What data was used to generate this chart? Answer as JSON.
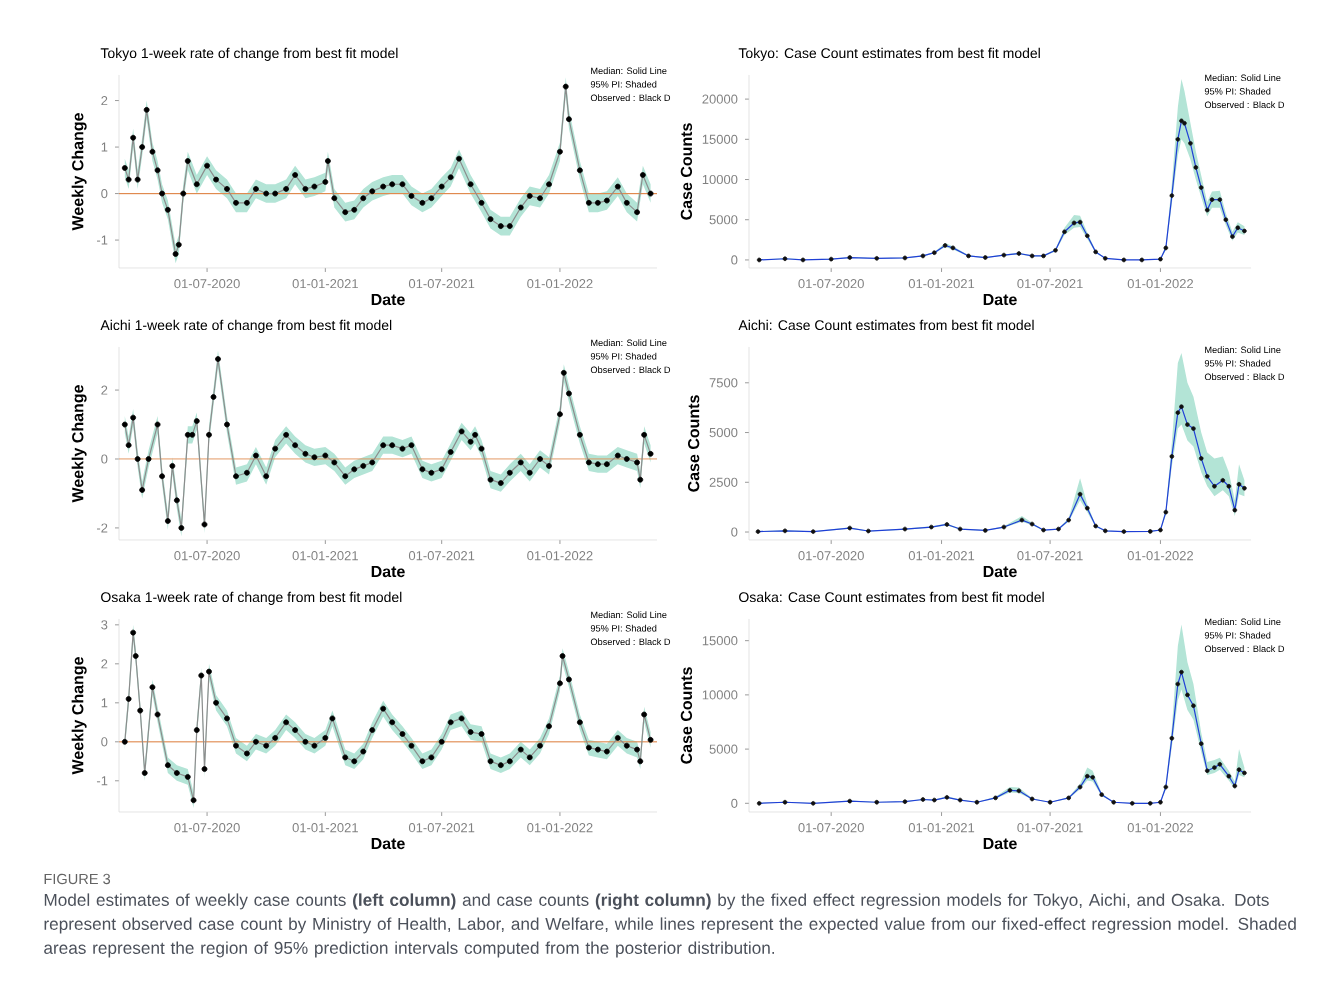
{
  "chart_data": [
    {
      "type": "line",
      "title": "Tokyo 1-week rate of change from best fit model",
      "xlabel": "Date",
      "ylabel": "Weekly Change",
      "x": [
        "2020-02-24",
        "2020-03-01",
        "2020-03-08",
        "2020-03-15",
        "2020-03-22",
        "2020-03-29",
        "2020-04-07",
        "2020-04-15",
        "2020-04-22",
        "2020-05-01",
        "2020-05-13",
        "2020-05-18",
        "2020-05-25",
        "2020-06-01",
        "2020-06-15",
        "2020-07-01",
        "2020-07-15",
        "2020-08-01",
        "2020-08-15",
        "2020-09-01",
        "2020-09-15",
        "2020-10-01",
        "2020-10-15",
        "2020-11-01",
        "2020-11-15",
        "2020-12-01",
        "2020-12-15",
        "2021-01-01",
        "2021-01-05",
        "2021-01-15",
        "2021-02-01",
        "2021-02-15",
        "2021-03-01",
        "2021-03-15",
        "2021-04-01",
        "2021-04-15",
        "2021-05-01",
        "2021-05-15",
        "2021-06-01",
        "2021-06-15",
        "2021-07-01",
        "2021-07-15",
        "2021-07-28",
        "2021-08-15",
        "2021-09-01",
        "2021-09-15",
        "2021-10-01",
        "2021-10-15",
        "2021-11-01",
        "2021-11-15",
        "2021-12-01",
        "2021-12-15",
        "2022-01-01",
        "2022-01-10",
        "2022-01-15",
        "2022-02-01",
        "2022-02-15",
        "2022-03-01",
        "2022-03-15",
        "2022-04-01",
        "2022-04-15",
        "2022-05-01",
        "2022-05-10",
        "2022-05-22"
      ],
      "series": [
        {
          "type": "line",
          "color": "#8c8c8c",
          "marker": "none",
          "values": [
            0.55,
            0.3,
            1.2,
            0.3,
            1.0,
            1.8,
            0.9,
            0.5,
            0.0,
            -0.35,
            -1.3,
            -1.1,
            0.0,
            0.7,
            0.2,
            0.6,
            0.3,
            0.1,
            -0.2,
            -0.2,
            0.1,
            0.0,
            0.0,
            0.1,
            0.4,
            0.1,
            0.15,
            0.25,
            0.7,
            -0.1,
            -0.4,
            -0.35,
            -0.1,
            0.05,
            0.15,
            0.2,
            0.2,
            -0.05,
            -0.2,
            -0.1,
            0.15,
            0.35,
            0.75,
            0.2,
            -0.2,
            -0.55,
            -0.7,
            -0.7,
            -0.3,
            -0.05,
            -0.1,
            0.2,
            0.9,
            2.3,
            1.6,
            0.5,
            -0.2,
            -0.2,
            -0.15,
            0.15,
            -0.2,
            -0.4,
            0.4,
            0.0
          ],
          "lower": [
            0.35,
            0.1,
            1.0,
            0.1,
            0.8,
            1.6,
            0.7,
            0.3,
            -0.2,
            -0.55,
            -1.5,
            -1.3,
            -0.2,
            0.5,
            0.0,
            0.4,
            0.1,
            -0.1,
            -0.4,
            -0.4,
            -0.1,
            -0.2,
            -0.2,
            -0.1,
            0.2,
            -0.1,
            -0.05,
            0.05,
            0.5,
            -0.3,
            -0.6,
            -0.55,
            -0.3,
            -0.15,
            -0.05,
            0.0,
            0.0,
            -0.25,
            -0.4,
            -0.3,
            -0.05,
            0.15,
            0.55,
            0.0,
            -0.4,
            -0.75,
            -0.9,
            -0.9,
            -0.5,
            -0.25,
            -0.3,
            0.0,
            0.7,
            2.1,
            1.4,
            0.3,
            -0.4,
            -0.4,
            -0.35,
            -0.05,
            -0.4,
            -0.6,
            0.2,
            -0.2
          ],
          "upper": [
            0.75,
            0.5,
            1.4,
            0.5,
            1.2,
            2.0,
            1.1,
            0.7,
            0.2,
            -0.15,
            -1.1,
            -0.9,
            0.2,
            0.9,
            0.4,
            0.8,
            0.5,
            0.3,
            0.0,
            0.0,
            0.3,
            0.2,
            0.2,
            0.3,
            0.6,
            0.3,
            0.35,
            0.45,
            0.9,
            0.1,
            -0.2,
            -0.15,
            0.1,
            0.25,
            0.35,
            0.4,
            0.4,
            0.15,
            0.0,
            0.1,
            0.35,
            0.55,
            0.95,
            0.4,
            0.0,
            -0.35,
            -0.5,
            -0.5,
            -0.1,
            0.15,
            0.1,
            0.4,
            1.1,
            2.5,
            1.8,
            0.7,
            0.0,
            0.0,
            0.05,
            0.35,
            0.0,
            -0.2,
            0.6,
            0.2
          ]
        },
        {
          "type": "scatter",
          "color": "#000000",
          "marker": "circle",
          "values": [
            0.55,
            0.3,
            1.2,
            0.3,
            1.0,
            1.8,
            0.9,
            0.5,
            0.0,
            -0.35,
            -1.3,
            -1.1,
            0.0,
            0.7,
            0.2,
            0.6,
            0.3,
            0.1,
            -0.2,
            -0.2,
            0.1,
            0.0,
            0.0,
            0.1,
            0.4,
            0.1,
            0.15,
            0.25,
            0.7,
            -0.1,
            -0.4,
            -0.35,
            -0.1,
            0.05,
            0.15,
            0.2,
            0.2,
            -0.05,
            -0.2,
            -0.1,
            0.15,
            0.35,
            0.75,
            0.2,
            -0.2,
            -0.55,
            -0.7,
            -0.7,
            -0.3,
            -0.05,
            -0.1,
            0.2,
            0.9,
            2.3,
            1.6,
            0.5,
            -0.2,
            -0.2,
            -0.15,
            0.15,
            -0.2,
            -0.4,
            0.4,
            0.0
          ]
        }
      ],
      "xticks": [
        {
          "value": "2020-07-01",
          "label": "01-07-2020"
        },
        {
          "value": "2021-01-01",
          "label": "01-01-2021"
        },
        {
          "value": "2021-07-01",
          "label": "01-07-2021"
        },
        {
          "value": "2022-01-01",
          "label": "01-01-2022"
        }
      ],
      "xlim": [
        "2020-02-15",
        "2022-06-01"
      ],
      "ylim": [
        -1.6,
        2.55
      ],
      "yticks": [
        -1,
        0,
        1,
        2
      ],
      "ref_lines": [
        {
          "axis": "y",
          "value": 0,
          "color": "#e08a4f"
        }
      ],
      "annotations": [
        "Median: Solid Line",
        "95% PI: Shaded",
        "Observed : Black D"
      ]
    },
    {
      "type": "line",
      "title": "Tokyo: Case Count estimates from best fit model",
      "xlabel": "Date",
      "ylabel": "Case Counts",
      "x": [
        "2020-03-03",
        "2020-04-15",
        "2020-05-15",
        "2020-07-01",
        "2020-08-01",
        "2020-09-15",
        "2020-11-01",
        "2020-12-01",
        "2020-12-20",
        "2021-01-07",
        "2021-01-20",
        "2021-02-15",
        "2021-03-15",
        "2021-04-15",
        "2021-05-10",
        "2021-06-01",
        "2021-06-20",
        "2021-07-10",
        "2021-07-25",
        "2021-08-10",
        "2021-08-20",
        "2021-09-01",
        "2021-09-15",
        "2021-10-01",
        "2021-11-01",
        "2021-12-01",
        "2022-01-01",
        "2022-01-10",
        "2022-01-20",
        "2022-01-30",
        "2022-02-05",
        "2022-02-10",
        "2022-02-20",
        "2022-03-01",
        "2022-03-10",
        "2022-03-20",
        "2022-03-28",
        "2022-04-10",
        "2022-04-20",
        "2022-05-01",
        "2022-05-10",
        "2022-05-21"
      ],
      "series": [
        {
          "type": "line",
          "color": "#1f3fd6",
          "marker": "none",
          "values": [
            0,
            150,
            0,
            100,
            300,
            200,
            250,
            500,
            900,
            1800,
            1500,
            500,
            300,
            600,
            800,
            500,
            500,
            1200,
            3500,
            4600,
            4700,
            3000,
            1000,
            200,
            0,
            0,
            100,
            1500,
            8000,
            15000,
            17300,
            17000,
            14500,
            11500,
            9000,
            6200,
            7500,
            7500,
            5000,
            2900,
            4000,
            3600
          ],
          "lower": [
            0,
            100,
            20,
            60,
            250,
            150,
            200,
            430,
            800,
            1600,
            1300,
            430,
            250,
            520,
            700,
            430,
            430,
            1050,
            3100,
            4000,
            4100,
            2600,
            850,
            150,
            10,
            0,
            60,
            1200,
            7000,
            13000,
            15000,
            14500,
            12500,
            10000,
            7800,
            5400,
            6500,
            6500,
            4300,
            2400,
            3400,
            3100
          ],
          "upper": [
            50,
            200,
            80,
            150,
            350,
            250,
            300,
            570,
            1000,
            2100,
            1700,
            570,
            350,
            680,
            900,
            570,
            570,
            1350,
            4000,
            5600,
            5500,
            3400,
            1150,
            250,
            50,
            40,
            150,
            1800,
            9500,
            19000,
            22500,
            21000,
            17000,
            13500,
            10500,
            7200,
            8500,
            8600,
            5800,
            3500,
            4700,
            4200
          ]
        },
        {
          "type": "scatter",
          "color": "#101010",
          "marker": "circle",
          "values": [
            0,
            150,
            0,
            100,
            300,
            200,
            250,
            500,
            900,
            1800,
            1500,
            500,
            300,
            600,
            800,
            500,
            500,
            1200,
            3500,
            4600,
            4700,
            3000,
            1000,
            200,
            0,
            0,
            100,
            1500,
            8000,
            15000,
            17300,
            17000,
            14500,
            11500,
            9000,
            6200,
            7500,
            7500,
            5000,
            2900,
            4000,
            3600
          ]
        }
      ],
      "xticks": [
        {
          "value": "2020-07-01",
          "label": "01-07-2020"
        },
        {
          "value": "2021-01-01",
          "label": "01-01-2021"
        },
        {
          "value": "2021-07-01",
          "label": "01-07-2021"
        },
        {
          "value": "2022-01-01",
          "label": "01-01-2022"
        }
      ],
      "xlim": [
        "2020-02-15",
        "2022-06-01"
      ],
      "ylim": [
        -1000,
        23000
      ],
      "yticks": [
        0,
        5000,
        10000,
        15000,
        20000
      ],
      "annotations": [
        "Median: Solid Line",
        "95% PI: Shaded",
        "Observed : Black D"
      ]
    },
    {
      "type": "line",
      "title": "Aichi 1-week rate of change from best fit model",
      "xlabel": "Date",
      "ylabel": "Weekly Change",
      "x": [
        "2020-02-24",
        "2020-03-01",
        "2020-03-08",
        "2020-03-15",
        "2020-03-22",
        "2020-04-01",
        "2020-04-15",
        "2020-04-22",
        "2020-05-01",
        "2020-05-08",
        "2020-05-15",
        "2020-05-22",
        "2020-06-01",
        "2020-06-08",
        "2020-06-15",
        "2020-06-27",
        "2020-07-04",
        "2020-07-11",
        "2020-07-18",
        "2020-08-01",
        "2020-08-15",
        "2020-09-01",
        "2020-09-15",
        "2020-10-01",
        "2020-10-15",
        "2020-11-01",
        "2020-11-15",
        "2020-12-01",
        "2020-12-15",
        "2021-01-01",
        "2021-01-15",
        "2021-02-01",
        "2021-02-15",
        "2021-03-01",
        "2021-03-15",
        "2021-04-01",
        "2021-04-15",
        "2021-05-01",
        "2021-05-15",
        "2021-06-01",
        "2021-06-15",
        "2021-07-01",
        "2021-07-15",
        "2021-08-01",
        "2021-08-15",
        "2021-08-22",
        "2021-09-01",
        "2021-09-15",
        "2021-10-01",
        "2021-10-15",
        "2021-11-01",
        "2021-11-15",
        "2021-12-01",
        "2021-12-15",
        "2022-01-01",
        "2022-01-07",
        "2022-01-15",
        "2022-02-01",
        "2022-02-15",
        "2022-03-01",
        "2022-03-15",
        "2022-04-01",
        "2022-04-15",
        "2022-05-01",
        "2022-05-06",
        "2022-05-12",
        "2022-05-22"
      ],
      "series": [
        {
          "type": "line",
          "color": "#8c8c8c",
          "marker": "none",
          "values": [
            1.0,
            0.4,
            1.2,
            0.0,
            -0.9,
            0.0,
            1.0,
            -0.5,
            -1.8,
            -0.2,
            -1.2,
            -2.0,
            0.7,
            0.7,
            1.1,
            -1.9,
            0.7,
            1.8,
            2.9,
            1.0,
            -0.5,
            -0.4,
            0.1,
            -0.5,
            0.3,
            0.7,
            0.4,
            0.15,
            0.05,
            0.1,
            -0.1,
            -0.5,
            -0.3,
            -0.2,
            -0.1,
            0.4,
            0.4,
            0.3,
            0.4,
            -0.3,
            -0.4,
            -0.3,
            0.2,
            0.8,
            0.5,
            0.7,
            0.3,
            -0.6,
            -0.7,
            -0.4,
            -0.1,
            -0.4,
            0.0,
            -0.2,
            1.3,
            2.5,
            1.9,
            0.7,
            -0.1,
            -0.15,
            -0.15,
            0.1,
            0.0,
            -0.1,
            -0.6,
            0.7,
            0.15
          ],
          "lower": [
            0.75,
            0.15,
            0.95,
            -0.25,
            -1.15,
            -0.25,
            0.75,
            -0.75,
            -2.05,
            -0.45,
            -1.45,
            -2.25,
            0.45,
            0.45,
            0.85,
            -2.15,
            0.45,
            1.55,
            2.65,
            0.75,
            -0.75,
            -0.65,
            -0.15,
            -0.75,
            0.05,
            0.45,
            0.15,
            -0.1,
            -0.2,
            -0.15,
            -0.35,
            -0.75,
            -0.55,
            -0.45,
            -0.35,
            0.15,
            0.15,
            0.05,
            0.15,
            -0.55,
            -0.65,
            -0.55,
            -0.05,
            0.55,
            0.25,
            0.45,
            0.05,
            -0.85,
            -0.95,
            -0.65,
            -0.35,
            -0.65,
            -0.25,
            -0.45,
            1.05,
            2.25,
            1.65,
            0.45,
            -0.35,
            -0.4,
            -0.4,
            -0.15,
            -0.25,
            -0.35,
            -0.85,
            0.45,
            -0.1
          ],
          "upper": [
            1.25,
            0.65,
            1.45,
            0.25,
            -0.65,
            0.25,
            1.25,
            -0.25,
            -1.55,
            0.05,
            -0.95,
            -1.75,
            0.95,
            0.95,
            1.35,
            -1.65,
            0.95,
            2.05,
            3.15,
            1.25,
            -0.25,
            -0.15,
            0.35,
            -0.25,
            0.55,
            0.95,
            0.65,
            0.4,
            0.3,
            0.35,
            0.15,
            -0.25,
            -0.05,
            0.05,
            0.15,
            0.65,
            0.65,
            0.55,
            0.65,
            -0.05,
            -0.15,
            -0.05,
            0.45,
            1.05,
            0.75,
            0.95,
            0.55,
            -0.35,
            -0.45,
            -0.15,
            0.15,
            -0.15,
            0.25,
            0.05,
            1.55,
            2.75,
            2.15,
            0.95,
            0.15,
            0.1,
            0.1,
            0.35,
            0.25,
            0.15,
            -0.35,
            0.95,
            0.4
          ]
        },
        {
          "type": "scatter",
          "color": "#000000",
          "marker": "circle",
          "values": [
            1.0,
            0.4,
            1.2,
            0.0,
            -0.9,
            0.0,
            1.0,
            -0.5,
            -1.8,
            -0.2,
            -1.2,
            -2.0,
            0.7,
            0.7,
            1.1,
            -1.9,
            0.7,
            1.8,
            2.9,
            1.0,
            -0.5,
            -0.4,
            0.1,
            -0.5,
            0.3,
            0.7,
            0.4,
            0.15,
            0.05,
            0.1,
            -0.1,
            -0.5,
            -0.3,
            -0.2,
            -0.1,
            0.4,
            0.4,
            0.3,
            0.4,
            -0.3,
            -0.4,
            -0.3,
            0.2,
            0.8,
            0.5,
            0.7,
            0.3,
            -0.6,
            -0.7,
            -0.4,
            -0.1,
            -0.4,
            0.0,
            -0.2,
            1.3,
            2.5,
            1.9,
            0.7,
            -0.1,
            -0.15,
            -0.15,
            0.1,
            0.0,
            -0.1,
            -0.6,
            0.7,
            0.15
          ]
        }
      ],
      "xticks": [
        {
          "value": "2020-07-01",
          "label": "01-07-2020"
        },
        {
          "value": "2021-01-01",
          "label": "01-01-2021"
        },
        {
          "value": "2021-07-01",
          "label": "01-07-2021"
        },
        {
          "value": "2022-01-01",
          "label": "01-01-2022"
        }
      ],
      "xlim": [
        "2020-02-15",
        "2022-06-01"
      ],
      "ylim": [
        -2.35,
        3.25
      ],
      "yticks": [
        -2,
        0,
        2
      ],
      "ref_lines": [
        {
          "axis": "y",
          "value": 0,
          "color": "#e08a4f"
        }
      ],
      "annotations": [
        "Median: Solid Line",
        "95% PI: Shaded",
        "Observed : Black D"
      ]
    },
    {
      "type": "line",
      "title": "Aichi: Case Count estimates from best fit model",
      "xlabel": "Date",
      "ylabel": "Case Counts",
      "x": [
        "2020-03-01",
        "2020-04-15",
        "2020-06-01",
        "2020-08-01",
        "2020-09-01",
        "2020-11-01",
        "2020-12-15",
        "2021-01-10",
        "2021-02-01",
        "2021-03-15",
        "2021-04-15",
        "2021-05-15",
        "2021-06-01",
        "2021-06-20",
        "2021-07-15",
        "2021-08-01",
        "2021-08-20",
        "2021-09-01",
        "2021-09-15",
        "2021-10-01",
        "2021-11-01",
        "2021-12-15",
        "2022-01-01",
        "2022-01-10",
        "2022-01-20",
        "2022-01-30",
        "2022-02-05",
        "2022-02-15",
        "2022-02-25",
        "2022-03-10",
        "2022-03-20",
        "2022-04-01",
        "2022-04-15",
        "2022-04-25",
        "2022-05-05",
        "2022-05-12",
        "2022-05-21"
      ],
      "series": [
        {
          "type": "line",
          "color": "#1f3fd6",
          "marker": "none",
          "values": [
            20,
            60,
            20,
            200,
            50,
            150,
            250,
            380,
            150,
            80,
            250,
            600,
            400,
            100,
            150,
            600,
            1900,
            1200,
            300,
            60,
            20,
            30,
            100,
            1000,
            3800,
            6000,
            6300,
            5400,
            5200,
            3700,
            2800,
            2300,
            2600,
            2300,
            1100,
            2400,
            2200
          ],
          "lower": [
            0,
            30,
            0,
            160,
            30,
            120,
            210,
            330,
            120,
            60,
            210,
            520,
            340,
            80,
            120,
            520,
            1600,
            1000,
            250,
            40,
            0,
            10,
            70,
            850,
            3300,
            5200,
            5400,
            4600,
            4300,
            3000,
            2300,
            1800,
            2100,
            1800,
            800,
            1900,
            1800
          ],
          "upper": [
            50,
            90,
            40,
            240,
            70,
            180,
            290,
            430,
            180,
            100,
            290,
            800,
            460,
            120,
            180,
            700,
            2700,
            1400,
            350,
            80,
            40,
            50,
            130,
            1200,
            4500,
            8500,
            9000,
            7500,
            6800,
            5000,
            4000,
            3700,
            3800,
            3000,
            1600,
            3400,
            2600
          ]
        },
        {
          "type": "scatter",
          "color": "#101010",
          "marker": "circle",
          "values": [
            20,
            60,
            20,
            200,
            50,
            150,
            250,
            380,
            150,
            80,
            250,
            600,
            400,
            100,
            150,
            600,
            1900,
            1200,
            300,
            60,
            20,
            30,
            100,
            1000,
            3800,
            6000,
            6300,
            5400,
            5200,
            3700,
            2800,
            2300,
            2600,
            2300,
            1100,
            2400,
            2200
          ]
        }
      ],
      "xticks": [
        {
          "value": "2020-07-01",
          "label": "01-07-2020"
        },
        {
          "value": "2021-01-01",
          "label": "01-01-2021"
        },
        {
          "value": "2021-07-01",
          "label": "01-07-2021"
        },
        {
          "value": "2022-01-01",
          "label": "01-01-2022"
        }
      ],
      "xlim": [
        "2020-02-15",
        "2022-06-01"
      ],
      "ylim": [
        -400,
        9300
      ],
      "yticks": [
        0,
        2500,
        5000,
        7500
      ],
      "annotations": [
        "Median: Solid Line",
        "95% PI: Shaded",
        "Observed : Black D"
      ]
    },
    {
      "type": "line",
      "title": "Osaka 1-week rate of change from best fit model",
      "xlabel": "Date",
      "ylabel": "Weekly Change",
      "x": [
        "2020-02-24",
        "2020-03-01",
        "2020-03-08",
        "2020-03-12",
        "2020-03-19",
        "2020-03-26",
        "2020-04-07",
        "2020-04-15",
        "2020-05-01",
        "2020-05-15",
        "2020-06-01",
        "2020-06-10",
        "2020-06-15",
        "2020-06-22",
        "2020-06-27",
        "2020-07-04",
        "2020-07-15",
        "2020-08-01",
        "2020-08-15",
        "2020-09-01",
        "2020-09-15",
        "2020-10-01",
        "2020-10-15",
        "2020-11-01",
        "2020-11-15",
        "2020-12-01",
        "2020-12-15",
        "2021-01-01",
        "2021-01-12",
        "2021-02-01",
        "2021-02-15",
        "2021-03-01",
        "2021-03-15",
        "2021-04-01",
        "2021-04-15",
        "2021-05-01",
        "2021-05-15",
        "2021-06-01",
        "2021-06-15",
        "2021-07-01",
        "2021-07-15",
        "2021-08-01",
        "2021-08-15",
        "2021-09-01",
        "2021-09-15",
        "2021-10-01",
        "2021-10-15",
        "2021-11-01",
        "2021-11-15",
        "2021-12-01",
        "2021-12-15",
        "2022-01-01",
        "2022-01-05",
        "2022-01-15",
        "2022-02-01",
        "2022-02-15",
        "2022-03-01",
        "2022-03-15",
        "2022-04-01",
        "2022-04-15",
        "2022-05-01",
        "2022-05-06",
        "2022-05-12",
        "2022-05-22"
      ],
      "series": [
        {
          "type": "line",
          "color": "#8c8c8c",
          "marker": "none",
          "values": [
            0.0,
            1.1,
            2.8,
            2.2,
            0.8,
            -0.8,
            1.4,
            0.7,
            -0.6,
            -0.8,
            -0.9,
            -1.5,
            0.3,
            1.7,
            -0.7,
            1.8,
            1.0,
            0.6,
            -0.1,
            -0.3,
            0.0,
            -0.1,
            0.1,
            0.5,
            0.3,
            0.0,
            -0.1,
            0.1,
            0.6,
            -0.4,
            -0.5,
            -0.25,
            0.3,
            0.85,
            0.5,
            0.2,
            -0.1,
            -0.5,
            -0.4,
            0.0,
            0.5,
            0.6,
            0.25,
            0.2,
            -0.5,
            -0.6,
            -0.5,
            -0.2,
            -0.4,
            -0.1,
            0.4,
            1.5,
            2.2,
            1.6,
            0.5,
            -0.15,
            -0.2,
            -0.25,
            0.1,
            -0.1,
            -0.2,
            -0.5,
            0.7,
            0.05
          ],
          "lower": [
            -0.2,
            0.9,
            2.6,
            2.0,
            0.6,
            -1.0,
            1.2,
            0.5,
            -0.8,
            -1.0,
            -1.1,
            -1.7,
            0.1,
            1.5,
            -0.9,
            1.6,
            0.8,
            0.4,
            -0.3,
            -0.5,
            -0.2,
            -0.3,
            -0.1,
            0.3,
            0.1,
            -0.2,
            -0.3,
            -0.1,
            0.4,
            -0.6,
            -0.7,
            -0.45,
            0.1,
            0.65,
            0.3,
            0.0,
            -0.3,
            -0.7,
            -0.6,
            -0.2,
            0.3,
            0.4,
            0.05,
            0.0,
            -0.7,
            -0.8,
            -0.7,
            -0.4,
            -0.6,
            -0.3,
            0.2,
            1.3,
            2.0,
            1.4,
            0.3,
            -0.35,
            -0.4,
            -0.45,
            -0.1,
            -0.3,
            -0.4,
            -0.7,
            0.5,
            -0.15
          ],
          "upper": [
            0.2,
            1.3,
            3.0,
            2.4,
            1.0,
            -0.6,
            1.6,
            0.9,
            -0.4,
            -0.6,
            -0.7,
            -1.3,
            0.5,
            1.9,
            -0.5,
            2.0,
            1.2,
            0.8,
            0.1,
            -0.1,
            0.2,
            0.1,
            0.3,
            0.7,
            0.5,
            0.2,
            0.1,
            0.3,
            0.8,
            -0.2,
            -0.3,
            -0.05,
            0.5,
            1.05,
            0.7,
            0.4,
            0.1,
            -0.3,
            -0.2,
            0.2,
            0.7,
            0.8,
            0.45,
            0.4,
            -0.3,
            -0.4,
            -0.3,
            0.0,
            -0.2,
            0.1,
            0.6,
            1.7,
            2.4,
            1.8,
            0.7,
            0.05,
            0.0,
            -0.05,
            0.3,
            0.1,
            0.0,
            -0.3,
            0.9,
            0.25
          ]
        },
        {
          "type": "scatter",
          "color": "#000000",
          "marker": "circle",
          "values": [
            0.0,
            1.1,
            2.8,
            2.2,
            0.8,
            -0.8,
            1.4,
            0.7,
            -0.6,
            -0.8,
            -0.9,
            -1.5,
            0.3,
            1.7,
            -0.7,
            1.8,
            1.0,
            0.6,
            -0.1,
            -0.3,
            0.0,
            -0.1,
            0.1,
            0.5,
            0.3,
            0.0,
            -0.1,
            0.1,
            0.6,
            -0.4,
            -0.5,
            -0.25,
            0.3,
            0.85,
            0.5,
            0.2,
            -0.1,
            -0.5,
            -0.4,
            0.0,
            0.5,
            0.6,
            0.25,
            0.2,
            -0.5,
            -0.6,
            -0.5,
            -0.2,
            -0.4,
            -0.1,
            0.4,
            1.5,
            2.2,
            1.6,
            0.5,
            -0.15,
            -0.2,
            -0.25,
            0.1,
            -0.1,
            -0.2,
            -0.5,
            0.7,
            0.05
          ]
        }
      ],
      "xticks": [
        {
          "value": "2020-07-01",
          "label": "01-07-2020"
        },
        {
          "value": "2021-01-01",
          "label": "01-01-2021"
        },
        {
          "value": "2021-07-01",
          "label": "01-07-2021"
        },
        {
          "value": "2022-01-01",
          "label": "01-01-2022"
        }
      ],
      "xlim": [
        "2020-02-15",
        "2022-06-01"
      ],
      "ylim": [
        -1.8,
        3.15
      ],
      "yticks": [
        -1,
        0,
        1,
        2,
        3
      ],
      "ref_lines": [
        {
          "axis": "y",
          "value": 0,
          "color": "#e08a4f"
        }
      ],
      "annotations": [
        "Median: Solid Line",
        "95% PI: Shaded",
        "Observed : Black D"
      ]
    },
    {
      "type": "line",
      "title": "Osaka: Case Count estimates from best fit model",
      "xlabel": "Date",
      "ylabel": "Case Counts",
      "x": [
        "2020-03-03",
        "2020-04-15",
        "2020-06-01",
        "2020-08-01",
        "2020-09-15",
        "2020-11-01",
        "2020-12-01",
        "2020-12-20",
        "2021-01-10",
        "2021-02-01",
        "2021-03-01",
        "2021-04-01",
        "2021-04-25",
        "2021-05-10",
        "2021-06-01",
        "2021-07-01",
        "2021-08-01",
        "2021-08-20",
        "2021-09-01",
        "2021-09-10",
        "2021-09-25",
        "2021-10-15",
        "2021-11-15",
        "2021-12-15",
        "2022-01-01",
        "2022-01-10",
        "2022-01-20",
        "2022-01-30",
        "2022-02-05",
        "2022-02-15",
        "2022-02-25",
        "2022-03-10",
        "2022-03-20",
        "2022-04-01",
        "2022-04-10",
        "2022-04-25",
        "2022-05-05",
        "2022-05-12",
        "2022-05-21"
      ],
      "series": [
        {
          "type": "line",
          "color": "#1f3fd6",
          "marker": "none",
          "values": [
            0,
            100,
            0,
            200,
            100,
            150,
            350,
            300,
            550,
            300,
            100,
            500,
            1200,
            1150,
            400,
            100,
            500,
            1500,
            2500,
            2400,
            800,
            100,
            0,
            0,
            100,
            1500,
            6000,
            11000,
            12100,
            10000,
            9000,
            5500,
            3000,
            3300,
            3600,
            2500,
            1600,
            3100,
            2800
          ],
          "lower": [
            0,
            60,
            0,
            150,
            70,
            110,
            300,
            250,
            480,
            250,
            70,
            430,
            1000,
            950,
            340,
            70,
            430,
            1300,
            2100,
            2000,
            680,
            70,
            10,
            10,
            70,
            1250,
            5200,
            9500,
            10500,
            8600,
            7700,
            4700,
            2600,
            2800,
            3100,
            2100,
            1300,
            2600,
            2400
          ],
          "upper": [
            50,
            140,
            40,
            250,
            130,
            190,
            400,
            350,
            650,
            350,
            130,
            600,
            1500,
            1450,
            460,
            130,
            580,
            1800,
            3300,
            3000,
            920,
            130,
            50,
            50,
            130,
            1800,
            7000,
            14500,
            16500,
            13000,
            11000,
            6500,
            3800,
            4000,
            4200,
            3000,
            2000,
            5000,
            3300
          ]
        },
        {
          "type": "scatter",
          "color": "#101010",
          "marker": "circle",
          "values": [
            0,
            100,
            0,
            200,
            100,
            150,
            350,
            300,
            550,
            300,
            100,
            500,
            1200,
            1150,
            400,
            100,
            500,
            1500,
            2500,
            2400,
            800,
            100,
            0,
            0,
            100,
            1500,
            6000,
            11000,
            12100,
            10000,
            9000,
            5500,
            3000,
            3300,
            3600,
            2500,
            1600,
            3100,
            2800
          ]
        }
      ],
      "xticks": [
        {
          "value": "2020-07-01",
          "label": "01-07-2020"
        },
        {
          "value": "2021-01-01",
          "label": "01-01-2021"
        },
        {
          "value": "2021-07-01",
          "label": "01-07-2021"
        },
        {
          "value": "2022-01-01",
          "label": "01-01-2022"
        }
      ],
      "xlim": [
        "2020-02-15",
        "2022-06-01"
      ],
      "ylim": [
        -800,
        17000
      ],
      "yticks": [
        0,
        5000,
        10000,
        15000
      ],
      "annotations": [
        "Median: Solid Line",
        "95% PI: Shaded",
        "Observed : Black D"
      ]
    },
    {
      "type": "other",
      "title": "FIGURE 3",
      "subtitle": "Model estimates of weekly case counts **(left column)** and case counts **(right column)** by the fixed effect regression models for Tokyo, Aichi, and Osaka. Dots represent observed case count by Ministry of Health, Labor, and Welfare, while lines represent the expected value from our fixed-effect regression model. Shaded areas represent the region of 95% prediction intervals computed from the posterior distribution."
    }
  ]
}
